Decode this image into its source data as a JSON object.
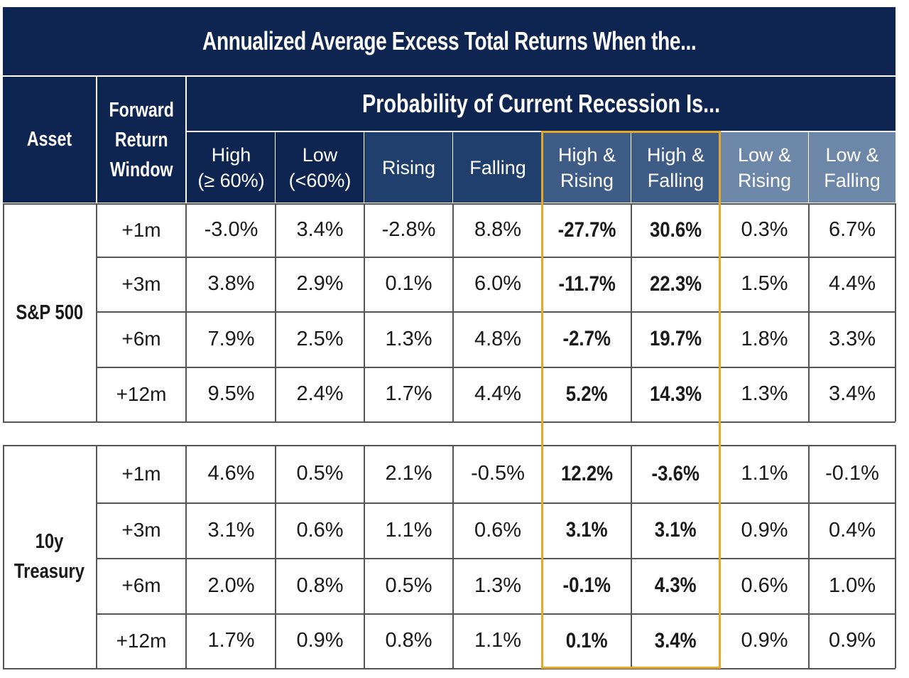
{
  "title": "Annualized Average Excess Total Returns When the...",
  "header": {
    "asset": "Asset",
    "window": "Forward\nReturn\nWindow",
    "group": "Probability of Current Recession Is..."
  },
  "columns": [
    "High\n(≥ 60%)",
    "Low\n(<60%)",
    "Rising",
    "Falling",
    "High &\nRising",
    "High &\nFalling",
    "Low &\nRising",
    "Low &\nFalling"
  ],
  "colors": {
    "dark_navy": "#0e2552",
    "mid_navy": "#203f6d",
    "slate": "#3e5c85",
    "light_slate": "#6d87a8",
    "highlight": "#e2a92c"
  },
  "chart_data": {
    "type": "table",
    "title": "Annualized Average Excess Total Returns When the...",
    "column_group": "Probability of Current Recession Is...",
    "columns": [
      "High (≥ 60%)",
      "Low (<60%)",
      "Rising",
      "Falling",
      "High & Rising",
      "High & Falling",
      "Low & Rising",
      "Low & Falling"
    ],
    "highlighted_columns": [
      "High & Rising",
      "High & Falling"
    ],
    "sections": [
      {
        "asset": "S&P 500",
        "rows": [
          {
            "window": "+1m",
            "values": [
              "-3.0%",
              "3.4%",
              "-2.8%",
              "8.8%",
              "-27.7%",
              "30.6%",
              "0.3%",
              "6.7%"
            ]
          },
          {
            "window": "+3m",
            "values": [
              "3.8%",
              "2.9%",
              "0.1%",
              "6.0%",
              "-11.7%",
              "22.3%",
              "1.5%",
              "4.4%"
            ]
          },
          {
            "window": "+6m",
            "values": [
              "7.9%",
              "2.5%",
              "1.3%",
              "4.8%",
              "-2.7%",
              "19.7%",
              "1.8%",
              "3.3%"
            ]
          },
          {
            "window": "+12m",
            "values": [
              "9.5%",
              "2.4%",
              "1.7%",
              "4.4%",
              "5.2%",
              "14.3%",
              "1.3%",
              "3.4%"
            ]
          }
        ]
      },
      {
        "asset": "10y\nTreasury",
        "rows": [
          {
            "window": "+1m",
            "values": [
              "4.6%",
              "0.5%",
              "2.1%",
              "-0.5%",
              "12.2%",
              "-3.6%",
              "1.1%",
              "-0.1%"
            ]
          },
          {
            "window": "+3m",
            "values": [
              "3.1%",
              "0.6%",
              "1.1%",
              "0.6%",
              "3.1%",
              "3.1%",
              "0.9%",
              "0.4%"
            ]
          },
          {
            "window": "+6m",
            "values": [
              "2.0%",
              "0.8%",
              "0.5%",
              "1.3%",
              "-0.1%",
              "4.3%",
              "0.6%",
              "1.0%"
            ]
          },
          {
            "window": "+12m",
            "values": [
              "1.7%",
              "0.9%",
              "0.8%",
              "1.1%",
              "0.1%",
              "3.4%",
              "0.9%",
              "0.9%"
            ]
          }
        ]
      }
    ]
  }
}
